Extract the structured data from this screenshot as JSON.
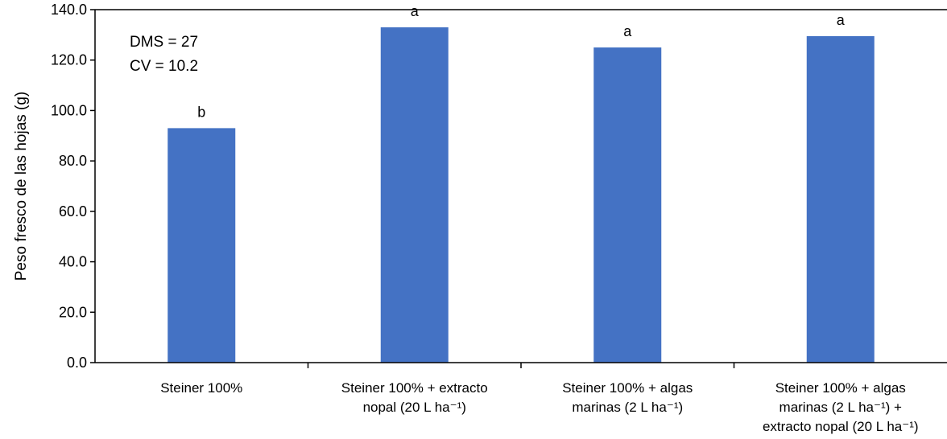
{
  "chart_data": {
    "type": "bar",
    "title": "",
    "xlabel": "",
    "ylabel": "Peso fresco de las hojas (g)",
    "ylim": [
      0,
      140
    ],
    "yticks": [
      "0.0",
      "20.0",
      "40.0",
      "60.0",
      "80.0",
      "100.0",
      "120.0",
      "140.0"
    ],
    "grid": false,
    "legend": "none",
    "bar_color": "#4472C4",
    "categories": [
      [
        "Steiner 100%"
      ],
      [
        "Steiner 100% + extracto",
        "nopal (20 L ha⁻¹)"
      ],
      [
        "Steiner 100% + algas",
        "marinas (2 L ha⁻¹)"
      ],
      [
        "Steiner 100% + algas",
        "marinas (2 L ha⁻¹) +",
        "extracto nopal (20 L ha⁻¹)"
      ]
    ],
    "values": [
      93,
      133,
      125,
      129.5
    ],
    "value_labels": [
      "b",
      "a",
      "a",
      "a"
    ],
    "annotations": [
      "DMS = 27",
      "CV = 10.2"
    ]
  }
}
